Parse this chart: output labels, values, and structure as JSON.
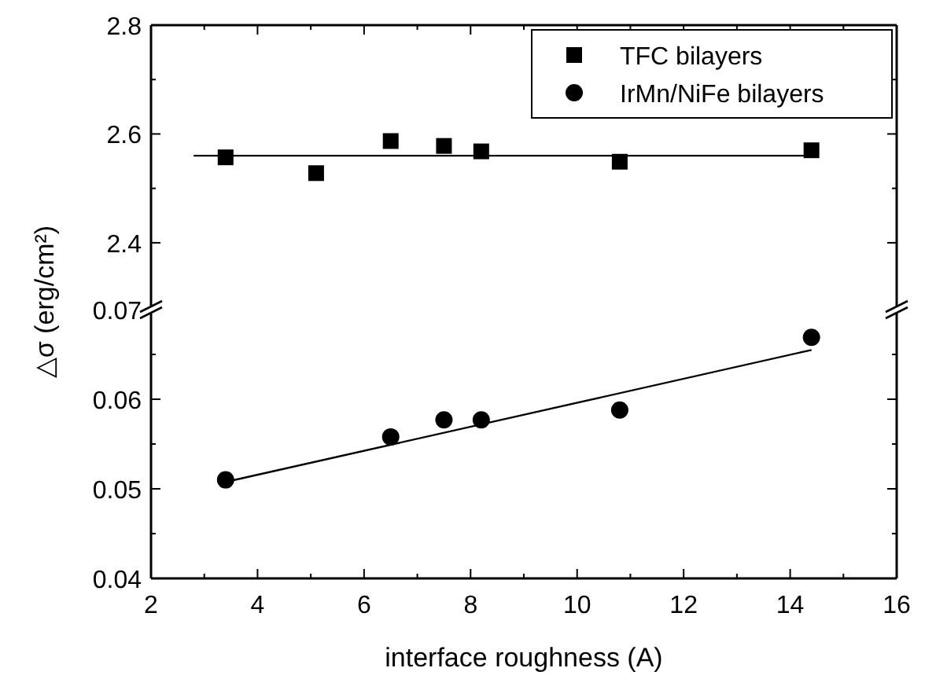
{
  "chart_data": [
    {
      "type": "scatter",
      "ylabel": "△σ (erg/cm²)",
      "xlim": [
        2,
        16
      ],
      "xticks": [
        2,
        {
          "value": 3,
          "label": null
        },
        4,
        {
          "value": 5,
          "label": null
        },
        6,
        {
          "value": 7,
          "label": null
        },
        8,
        {
          "value": 9,
          "label": null
        },
        10,
        {
          "value": 11,
          "label": null
        },
        12,
        {
          "value": 13,
          "label": null
        },
        14,
        {
          "value": 15,
          "label": null
        },
        16
      ],
      "ylim": [
        2.28,
        2.8
      ],
      "yticks": [
        2.4,
        {
          "value": 2.5,
          "label": null
        },
        2.6,
        {
          "value": 2.7,
          "label": null
        },
        2.8
      ],
      "tick_labels": "y",
      "legend": "top right",
      "x": [
        3.4,
        5.1,
        6.5,
        7.5,
        8.2,
        10.8,
        14.4
      ],
      "series": [
        {
          "name": "TFC bilayers",
          "marker": "square",
          "color": "#000000",
          "values": [
            2.557,
            2.528,
            2.587,
            2.578,
            2.568,
            2.549,
            2.57
          ]
        },
        {
          "type": "line",
          "marker": "none",
          "color": "#000000",
          "x": [
            2.8,
            14.4
          ],
          "values": [
            2.56,
            2.56
          ]
        }
      ]
    },
    {
      "type": "scatter",
      "xlabel": "interface roughness (A)",
      "xlim": [
        2,
        16
      ],
      "xticks": [
        2,
        {
          "value": 3,
          "label": null
        },
        4,
        {
          "value": 5,
          "label": null
        },
        6,
        {
          "value": 7,
          "label": null
        },
        8,
        {
          "value": 9,
          "label": null
        },
        10,
        {
          "value": 11,
          "label": null
        },
        12,
        {
          "value": 13,
          "label": null
        },
        14,
        {
          "value": 15,
          "label": null
        },
        16
      ],
      "ylim": [
        0.04,
        0.07
      ],
      "yticks": [
        0.04,
        {
          "value": 0.045,
          "label": null
        },
        0.05,
        {
          "value": 0.055,
          "label": null
        },
        0.06,
        {
          "value": 0.065,
          "label": null
        },
        0.07
      ],
      "x": [
        3.4,
        6.5,
        7.5,
        8.2,
        10.8,
        14.4
      ],
      "series": [
        {
          "name": "IrMn/NiFe bilayers",
          "marker": "circle",
          "color": "#000000",
          "values": [
            0.051,
            0.0558,
            0.0577,
            0.0577,
            0.0588,
            0.0669
          ]
        },
        {
          "type": "line",
          "marker": "none",
          "color": "#000000",
          "x": [
            3.5,
            14.4
          ],
          "values": [
            0.0509,
            0.0655
          ]
        }
      ]
    }
  ]
}
